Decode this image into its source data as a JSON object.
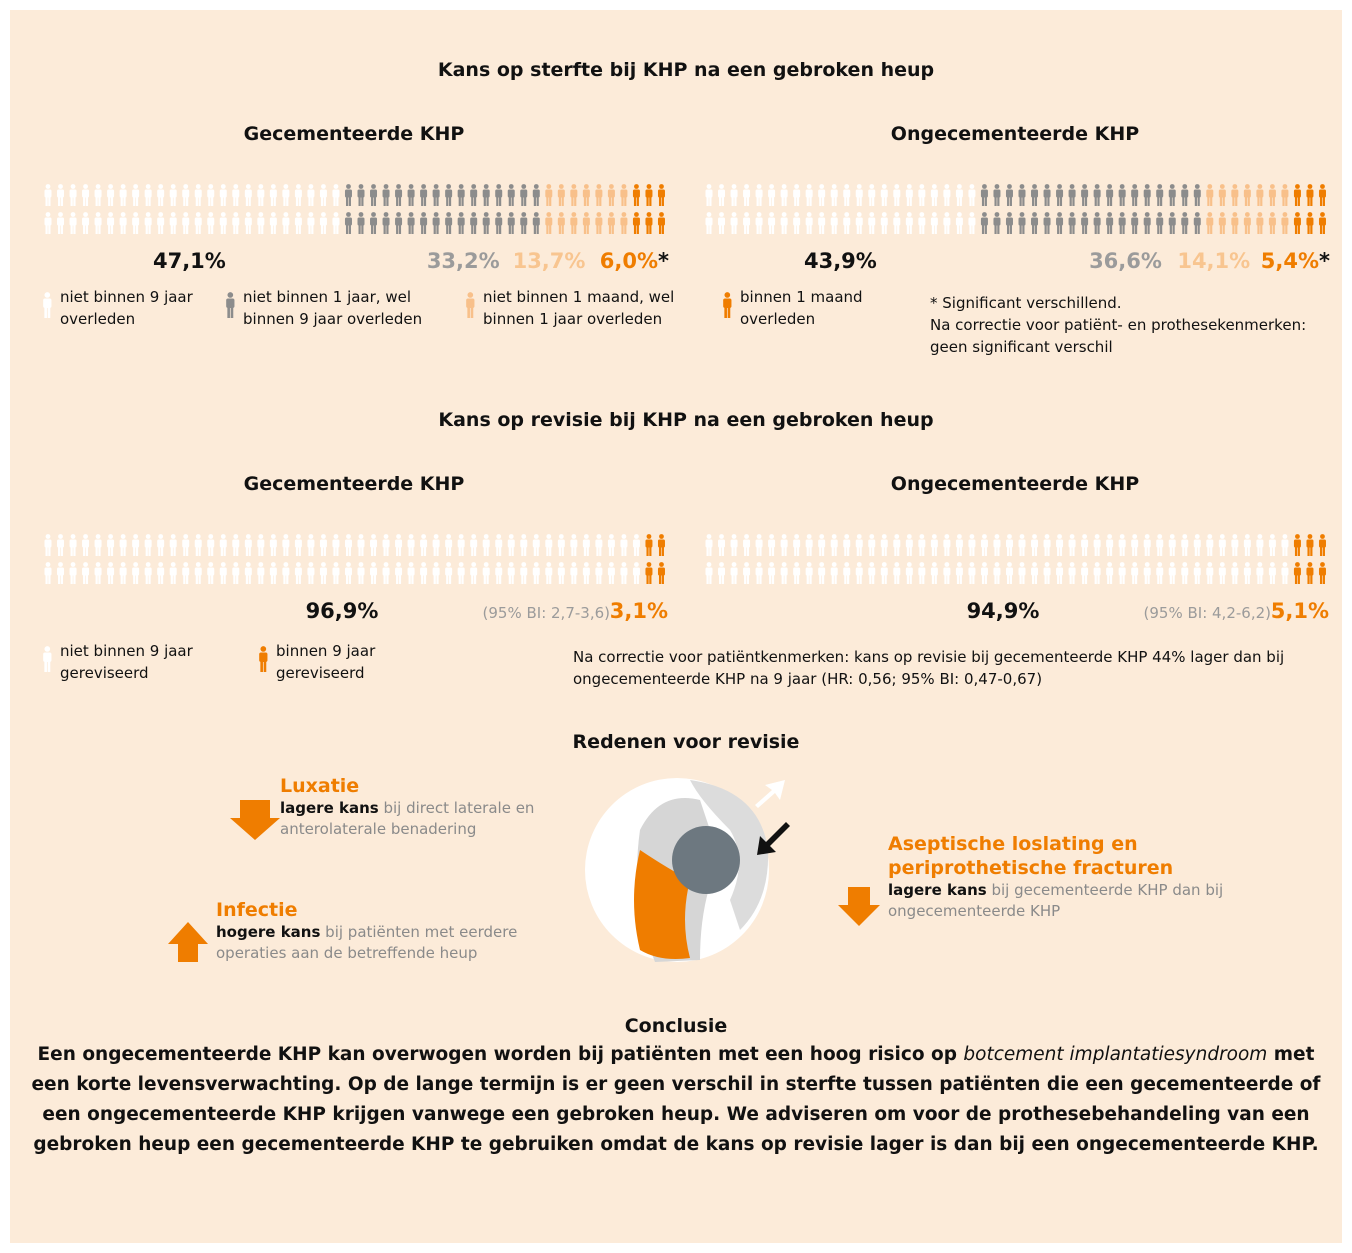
{
  "mortality": {
    "title": "Kans op sterfte bij KHP na een gebroken heup",
    "legend": [
      {
        "color": "#ffffff",
        "lines": [
          "niet binnen 9 jaar",
          "overleden"
        ]
      },
      {
        "color": "#8c8c8c",
        "lines": [
          "niet binnen 1 jaar, wel",
          "binnen 9 jaar overleden"
        ]
      },
      {
        "color": "#f8c08a",
        "lines": [
          "niet binnen 1 maand, wel",
          "binnen 1 jaar overleden"
        ]
      },
      {
        "color": "#ef7d00",
        "lines": [
          "binnen 1 maand",
          "overleden"
        ]
      }
    ],
    "panels": [
      {
        "title": "Gecementeerde KHP",
        "marker": "*",
        "segments": [
          {
            "value": 47.1,
            "label": "47,1%"
          },
          {
            "value": 33.2,
            "label": "33,2%"
          },
          {
            "value": 13.7,
            "label": "13,7%"
          },
          {
            "value": 6.0,
            "label": "6,0%"
          }
        ]
      },
      {
        "title": "Ongecementeerde KHP",
        "marker": "*",
        "segments": [
          {
            "value": 43.9,
            "label": "43,9%"
          },
          {
            "value": 36.6,
            "label": "36,6%"
          },
          {
            "value": 14.1,
            "label": "14,1%"
          },
          {
            "value": 5.4,
            "label": "5,4%"
          }
        ]
      }
    ],
    "note": [
      "* Significant verschillend.",
      "Na correctie voor patiënt- en prothesekenmerken:",
      "geen significant verschil"
    ]
  },
  "revision": {
    "title": "Kans op revisie bij KHP na een gebroken heup",
    "legend": [
      {
        "color": "#ffffff",
        "lines": [
          "niet binnen 9 jaar",
          "gereviseerd"
        ]
      },
      {
        "color": "#ef7d00",
        "lines": [
          "binnen 9 jaar",
          "gereviseerd"
        ]
      }
    ],
    "panels": [
      {
        "title": "Gecementeerde KHP",
        "ci": "(95% BI: 2,7-3,6)",
        "segments": [
          {
            "value": 96.9,
            "label": "96,9%"
          },
          {
            "value": 3.1,
            "label": "3,1%"
          }
        ]
      },
      {
        "title": "Ongecementeerde KHP",
        "ci": "(95% BI: 4,2-6,2)",
        "segments": [
          {
            "value": 94.9,
            "label": "94,9%"
          },
          {
            "value": 5.1,
            "label": "5,1%"
          }
        ]
      }
    ],
    "note": [
      "Na correctie voor patiëntkenmerken: kans op revisie bij gecementeerde KHP 44% lager dan bij",
      "ongecementeerde KHP na 9 jaar (HR: 0,56; 95% BI: 0,47-0,67)"
    ]
  },
  "reasons": {
    "title": "Redenen voor revisie",
    "items": [
      {
        "title": "Luxatie",
        "emphasis": "lagere kans",
        "text": " bij direct laterale en anterolaterale benadering"
      },
      {
        "title": "Infectie",
        "emphasis": "hogere kans",
        "text": " bij patiënten met eerdere operaties aan de betreffende heup"
      },
      {
        "title": "Aseptische loslating en periprothetische fracturen",
        "emphasis": "lagere kans",
        "text": " bij gecementeerde KHP dan bij ongecementeerde KHP"
      }
    ]
  },
  "conclusion": {
    "title": "Conclusie",
    "before": "Een ongecementeerde KHP kan overwogen worden bij patiënten met een hoog risico op ",
    "italic": "botcement implantatiesyndroom",
    "after": " met een korte levensverwachting. Op de lange termijn is er geen verschil in sterfte tussen patiënten die een gecementeerde of een ongecementeerde KHP krijgen vanwege een gebroken heup. We adviseren om voor de prothesebehandeling van een gebroken heup een gecementeerde KHP te gebruiken omdat de kans op revisie lager is dan bij een ongecementeerde KHP."
  }
}
